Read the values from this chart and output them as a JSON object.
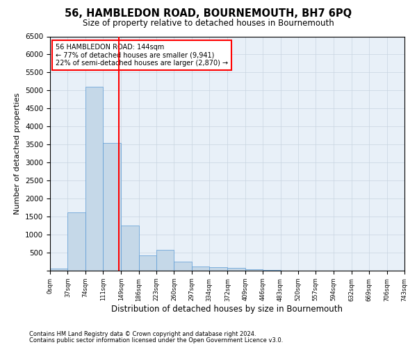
{
  "title": "56, HAMBLEDON ROAD, BOURNEMOUTH, BH7 6PQ",
  "subtitle": "Size of property relative to detached houses in Bournemouth",
  "xlabel": "Distribution of detached houses by size in Bournemouth",
  "ylabel": "Number of detached properties",
  "bar_color": "#c5d8e8",
  "bar_edge_color": "#5b9bd5",
  "property_line_color": "#ff0000",
  "property_sqm": 144,
  "annotation_line1": "56 HAMBLEDON ROAD: 144sqm",
  "annotation_line2": "← 77% of detached houses are smaller (9,941)",
  "annotation_line3": "22% of semi-detached houses are larger (2,870) →",
  "bin_edges": [
    0,
    37,
    74,
    111,
    149,
    186,
    223,
    260,
    297,
    334,
    372,
    409,
    446,
    483,
    520,
    557,
    594,
    632,
    669,
    706,
    743
  ],
  "bin_labels": [
    "0sqm",
    "37sqm",
    "74sqm",
    "111sqm",
    "149sqm",
    "186sqm",
    "223sqm",
    "260sqm",
    "297sqm",
    "334sqm",
    "372sqm",
    "409sqm",
    "446sqm",
    "483sqm",
    "520sqm",
    "557sqm",
    "594sqm",
    "632sqm",
    "669sqm",
    "706sqm",
    "743sqm"
  ],
  "bar_heights": [
    50,
    1620,
    5100,
    3550,
    1250,
    430,
    570,
    250,
    120,
    100,
    70,
    30,
    10,
    5,
    2,
    1,
    0,
    0,
    0,
    0
  ],
  "ylim": [
    0,
    6500
  ],
  "yticks": [
    0,
    500,
    1000,
    1500,
    2000,
    2500,
    3000,
    3500,
    4000,
    4500,
    5000,
    5500,
    6000,
    6500
  ],
  "background_color": "#ffffff",
  "plot_bg_color": "#e8f0f8",
  "grid_color": "#c8d4e0",
  "footnote1": "Contains HM Land Registry data © Crown copyright and database right 2024.",
  "footnote2": "Contains public sector information licensed under the Open Government Licence v3.0."
}
